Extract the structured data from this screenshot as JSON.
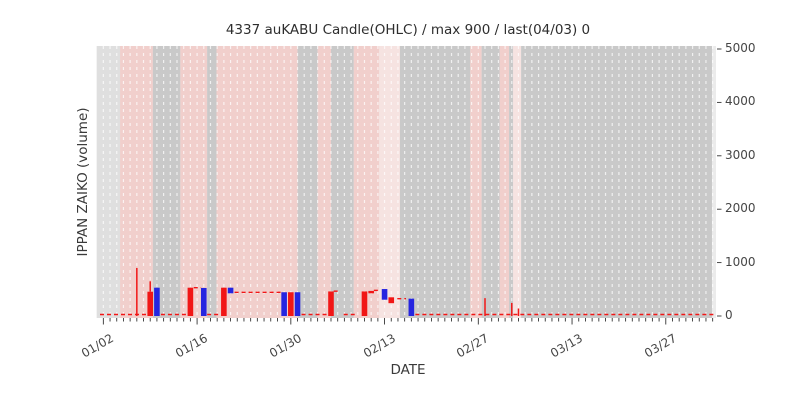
{
  "title": "4337 auKABU Candle(OHLC) / max 900 / last(04/03) 0",
  "x_axis": {
    "label": "DATE",
    "tick_labels": [
      "01/02",
      "01/16",
      "01/30",
      "02/13",
      "02/27",
      "03/13",
      "03/27"
    ],
    "tick_days": [
      0,
      14,
      28,
      42,
      56,
      70,
      84
    ]
  },
  "y_axis": {
    "label": "IPPAN ZAIKO (volume)",
    "ticks": [
      0,
      1000,
      2000,
      3000,
      4000,
      5000
    ],
    "side": "right"
  },
  "colors": {
    "up_red": "#f11616",
    "down_blue": "#2525e0",
    "close_line": "#f11616",
    "band_gray": "#c9c9c9",
    "band_light_gray": "#dfdfdf",
    "band_pink": "#f1cfcc",
    "band_light_pink": "#f6e3e1",
    "plot_bg": "#ebebeb",
    "grid": "rgba(255,255,255,0.72)",
    "tick": "#333333"
  },
  "chart_data": {
    "type": "candlestick",
    "title": "4337 auKABU Candle(OHLC) / max 900 / last(04/03) 0",
    "xlabel": "DATE",
    "ylabel": "IPPAN ZAIKO (volume)",
    "date_range": {
      "start": "01/02",
      "end": "04/03",
      "num_days": 92
    },
    "ylim": [
      0,
      5000
    ],
    "max_value": 900,
    "last_date": "04/03",
    "last_value": 0,
    "candles": [
      {
        "day": 7,
        "color": "red",
        "low": 0,
        "high": 455,
        "wick_high": 650
      },
      {
        "day": 8,
        "color": "blue",
        "low": 0,
        "high": 530
      },
      {
        "day": 13,
        "color": "red",
        "low": 0,
        "high": 530
      },
      {
        "day": 15,
        "color": "blue",
        "low": 0,
        "high": 525
      },
      {
        "day": 18,
        "color": "red",
        "low": 0,
        "high": 530
      },
      {
        "day": 19,
        "color": "blue",
        "low": 425,
        "high": 530
      },
      {
        "day": 27,
        "color": "blue",
        "low": 0,
        "high": 445
      },
      {
        "day": 28,
        "color": "red",
        "low": 0,
        "high": 445
      },
      {
        "day": 29,
        "color": "blue",
        "low": 0,
        "high": 445
      },
      {
        "day": 34,
        "color": "red",
        "low": 0,
        "high": 460
      },
      {
        "day": 39,
        "color": "red",
        "low": 0,
        "high": 460
      },
      {
        "day": 40,
        "color": "red",
        "low": 425,
        "high": 470
      },
      {
        "day": 42,
        "color": "blue",
        "low": 305,
        "high": 505
      },
      {
        "day": 43,
        "color": "red",
        "low": 240,
        "high": 350
      },
      {
        "day": 46,
        "color": "blue",
        "low": 0,
        "high": 325
      }
    ],
    "wick_spikes": [
      {
        "day": 5,
        "high": 900
      },
      {
        "day": 57,
        "high": 335
      },
      {
        "day": 61,
        "high": 245
      },
      {
        "day": 62,
        "high": 140
      }
    ],
    "flat_close_segments": [
      {
        "from": -0.5,
        "to": 6.6,
        "level": 0
      },
      {
        "from": 8.6,
        "to": 12.5,
        "level": 0
      },
      {
        "from": 13.5,
        "to": 14.6,
        "level": 530
      },
      {
        "from": 15.5,
        "to": 17.5,
        "level": 0
      },
      {
        "from": 19.6,
        "to": 26.6,
        "level": 443
      },
      {
        "from": 29.6,
        "to": 33.5,
        "level": 0
      },
      {
        "from": 34.4,
        "to": 35.4,
        "level": 465
      },
      {
        "from": 35.9,
        "to": 37.7,
        "level": 0
      },
      {
        "from": 40.4,
        "to": 41.3,
        "level": 480
      },
      {
        "from": 43.9,
        "to": 45.2,
        "level": 325
      },
      {
        "from": 46.6,
        "to": 91.5,
        "level": 0
      }
    ],
    "background_bands": [
      {
        "from": -0.5,
        "to": 3.0,
        "shade": "light_gray"
      },
      {
        "from": 3.0,
        "to": 7.9,
        "shade": "pink"
      },
      {
        "from": 7.9,
        "to": 12.0,
        "shade": "gray"
      },
      {
        "from": 12.0,
        "to": 16.0,
        "shade": "pink"
      },
      {
        "from": 16.0,
        "to": 17.4,
        "shade": "gray"
      },
      {
        "from": 17.4,
        "to": 29.5,
        "shade": "pink"
      },
      {
        "from": 29.5,
        "to": 32.5,
        "shade": "gray"
      },
      {
        "from": 32.5,
        "to": 34.5,
        "shade": "pink"
      },
      {
        "from": 34.5,
        "to": 37.9,
        "shade": "gray"
      },
      {
        "from": 37.9,
        "to": 41.7,
        "shade": "pink"
      },
      {
        "from": 41.7,
        "to": 44.8,
        "shade": "light_pink"
      },
      {
        "from": 44.8,
        "to": 55.3,
        "shade": "gray"
      },
      {
        "from": 55.3,
        "to": 57.0,
        "shade": "pink"
      },
      {
        "from": 57.0,
        "to": 59.7,
        "shade": "gray"
      },
      {
        "from": 59.7,
        "to": 61.1,
        "shade": "pink"
      },
      {
        "from": 61.1,
        "to": 61.7,
        "shade": "gray"
      },
      {
        "from": 61.7,
        "to": 62.9,
        "shade": "light_pink"
      },
      {
        "from": 62.9,
        "to": 91.4,
        "shade": "gray"
      }
    ],
    "grid": "vertical-daily-dashed",
    "legend": "none"
  }
}
